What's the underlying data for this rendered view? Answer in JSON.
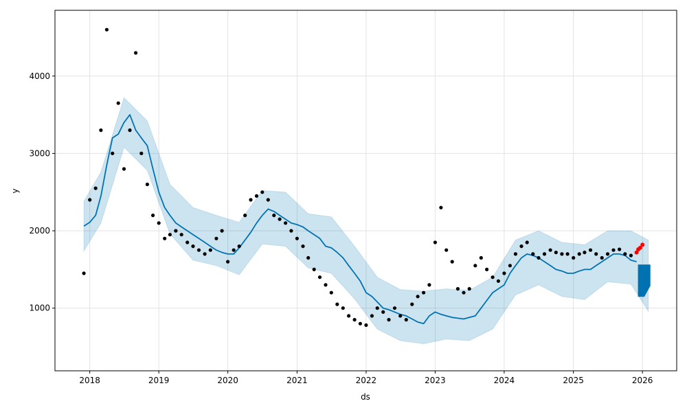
{
  "chart_data": {
    "type": "line",
    "title": "",
    "xlabel": "ds",
    "ylabel": "y",
    "x_axis": "date",
    "xlim": [
      "2017-07-01",
      "2026-07-01"
    ],
    "ylim": [
      190,
      4850
    ],
    "x_tick_labels": [
      "2018",
      "2019",
      "2020",
      "2021",
      "2022",
      "2023",
      "2024",
      "2025",
      "2026"
    ],
    "y_ticks": [
      1000,
      2000,
      3000,
      4000
    ],
    "grid": true,
    "legend": "none",
    "colors": {
      "observed": "#000000",
      "forecast": "#0072B2",
      "uncertainty": "#0072B2",
      "highlight": "#FF0000"
    },
    "series": [
      {
        "role": "forecast",
        "x": [
          "2017-12-01",
          "2018-01-01",
          "2018-02-01",
          "2018-03-01",
          "2018-04-01",
          "2018-05-01",
          "2018-06-01",
          "2018-07-01",
          "2018-08-01",
          "2018-09-01",
          "2018-10-01",
          "2018-11-01",
          "2018-12-01",
          "2019-01-01",
          "2019-02-01",
          "2019-03-01",
          "2019-04-01",
          "2019-05-01",
          "2019-06-01",
          "2019-07-01",
          "2019-08-01",
          "2019-09-01",
          "2019-10-01",
          "2019-11-01",
          "2019-12-01",
          "2020-01-01",
          "2020-02-01",
          "2020-03-01",
          "2020-04-01",
          "2020-05-01",
          "2020-06-01",
          "2020-07-01",
          "2020-08-01",
          "2020-09-01",
          "2020-10-01",
          "2020-11-01",
          "2020-12-01",
          "2021-01-01",
          "2021-02-01",
          "2021-03-01",
          "2021-04-01",
          "2021-05-01",
          "2021-06-01",
          "2021-07-01",
          "2021-08-01",
          "2021-09-01",
          "2021-10-01",
          "2021-11-01",
          "2021-12-01",
          "2022-01-01",
          "2022-02-01",
          "2022-03-01",
          "2022-04-01",
          "2022-05-01",
          "2022-06-01",
          "2022-07-01",
          "2022-08-01",
          "2022-09-01",
          "2022-10-01",
          "2022-11-01",
          "2022-12-01",
          "2023-01-01",
          "2023-02-01",
          "2023-03-01",
          "2023-04-01",
          "2023-05-01",
          "2023-06-01",
          "2023-07-01",
          "2023-08-01",
          "2023-09-01",
          "2023-10-01",
          "2023-11-01",
          "2023-12-01",
          "2024-01-01",
          "2024-02-01",
          "2024-03-01",
          "2024-04-01",
          "2024-05-01",
          "2024-06-01",
          "2024-07-01",
          "2024-08-01",
          "2024-09-01",
          "2024-10-01",
          "2024-11-01",
          "2024-12-01",
          "2025-01-01",
          "2025-02-01",
          "2025-03-01",
          "2025-04-01",
          "2025-05-01",
          "2025-06-01",
          "2025-07-01",
          "2025-08-01",
          "2025-09-01",
          "2025-10-01",
          "2025-11-01",
          "2025-12-01"
        ],
        "y": [
          2060,
          2110,
          2200,
          2450,
          2850,
          3200,
          3250,
          3400,
          3500,
          3300,
          3200,
          3100,
          2800,
          2500,
          2300,
          2200,
          2100,
          2050,
          2000,
          1950,
          1900,
          1850,
          1800,
          1750,
          1720,
          1700,
          1700,
          1780,
          1880,
          1980,
          2100,
          2200,
          2280,
          2250,
          2200,
          2150,
          2100,
          2080,
          2050,
          2000,
          1950,
          1900,
          1800,
          1780,
          1720,
          1650,
          1550,
          1450,
          1350,
          1200,
          1150,
          1080,
          1000,
          980,
          950,
          920,
          900,
          860,
          820,
          800,
          900,
          950,
          920,
          900,
          880,
          870,
          860,
          880,
          900,
          1000,
          1100,
          1200,
          1250,
          1300,
          1450,
          1550,
          1650,
          1700,
          1680,
          1650,
          1600,
          1550,
          1500,
          1480,
          1450,
          1450,
          1480,
          1500,
          1500,
          1550,
          1600,
          1650,
          1700,
          1700,
          1680,
          1620,
          1600
        ]
      },
      {
        "role": "uncertainty",
        "x": [
          "2017-12-01",
          "2018-03-01",
          "2018-07-01",
          "2018-11-01",
          "2019-03-01",
          "2019-07-01",
          "2019-11-01",
          "2020-03-01",
          "2020-07-01",
          "2020-11-01",
          "2021-03-01",
          "2021-07-01",
          "2021-11-01",
          "2022-03-01",
          "2022-07-01",
          "2022-11-01",
          "2023-03-01",
          "2023-07-01",
          "2023-11-01",
          "2024-03-01",
          "2024-07-01",
          "2024-11-01",
          "2025-03-01",
          "2025-07-01",
          "2025-11-01",
          "2026-02-01"
        ],
        "upper": [
          2380,
          2760,
          3720,
          3420,
          2600,
          2300,
          2200,
          2110,
          2520,
          2500,
          2220,
          2180,
          1800,
          1400,
          1240,
          1220,
          1250,
          1230,
          1400,
          1880,
          2000,
          1850,
          1820,
          2000,
          2000,
          1880
        ],
        "lower": [
          1740,
          2100,
          3080,
          2780,
          1960,
          1620,
          1550,
          1430,
          1830,
          1800,
          1520,
          1450,
          1120,
          730,
          580,
          540,
          600,
          580,
          730,
          1170,
          1300,
          1150,
          1110,
          1340,
          1310,
          960
        ]
      },
      {
        "role": "forecast-future",
        "x": [
          "2025-12-10",
          "2026-01-10",
          "2026-02-10"
        ],
        "y_min": [
          1150,
          1150,
          1290
        ],
        "y_max": [
          1560,
          1560,
          1560
        ]
      }
    ],
    "observed": {
      "x": [
        "2017-12-01",
        "2018-01-01",
        "2018-02-01",
        "2018-03-01",
        "2018-04-01",
        "2018-05-01",
        "2018-06-01",
        "2018-07-01",
        "2018-08-01",
        "2018-09-01",
        "2018-10-01",
        "2018-11-01",
        "2018-12-01",
        "2019-01-01",
        "2019-02-01",
        "2019-03-01",
        "2019-04-01",
        "2019-05-01",
        "2019-06-01",
        "2019-07-01",
        "2019-08-01",
        "2019-09-01",
        "2019-10-01",
        "2019-11-01",
        "2019-12-01",
        "2020-01-01",
        "2020-02-01",
        "2020-03-01",
        "2020-04-01",
        "2020-05-01",
        "2020-06-01",
        "2020-07-01",
        "2020-08-01",
        "2020-09-01",
        "2020-10-01",
        "2020-11-01",
        "2020-12-01",
        "2021-01-01",
        "2021-02-01",
        "2021-03-01",
        "2021-04-01",
        "2021-05-01",
        "2021-06-01",
        "2021-07-01",
        "2021-08-01",
        "2021-09-01",
        "2021-10-01",
        "2021-11-01",
        "2021-12-01",
        "2022-01-01",
        "2022-02-01",
        "2022-03-01",
        "2022-04-01",
        "2022-05-01",
        "2022-06-01",
        "2022-07-01",
        "2022-08-01",
        "2022-09-01",
        "2022-10-01",
        "2022-11-01",
        "2022-12-01",
        "2023-01-01",
        "2023-02-01",
        "2023-03-01",
        "2023-04-01",
        "2023-05-01",
        "2023-06-01",
        "2023-07-01",
        "2023-08-01",
        "2023-09-01",
        "2023-10-01",
        "2023-11-01",
        "2023-12-01",
        "2024-01-01",
        "2024-02-01",
        "2024-03-01",
        "2024-04-01",
        "2024-05-01",
        "2024-06-01",
        "2024-07-01",
        "2024-08-01",
        "2024-09-01",
        "2024-10-01",
        "2024-11-01",
        "2024-12-01",
        "2025-01-01",
        "2025-02-01",
        "2025-03-01",
        "2025-04-01",
        "2025-05-01",
        "2025-06-01",
        "2025-07-01",
        "2025-08-01",
        "2025-09-01",
        "2025-10-01",
        "2025-11-01"
      ],
      "y": [
        1450,
        2400,
        2550,
        3300,
        4600,
        3000,
        3650,
        2800,
        3300,
        4300,
        3000,
        2600,
        2200,
        2100,
        1900,
        1950,
        2000,
        1950,
        1850,
        1800,
        1750,
        1700,
        1750,
        1900,
        2000,
        1600,
        1750,
        1800,
        2200,
        2400,
        2450,
        2500,
        2400,
        2200,
        2150,
        2100,
        2000,
        1900,
        1800,
        1650,
        1500,
        1400,
        1300,
        1200,
        1050,
        1000,
        900,
        850,
        800,
        780,
        900,
        1000,
        950,
        850,
        1000,
        900,
        850,
        1050,
        1150,
        1200,
        1300,
        1850,
        2300,
        1750,
        1600,
        1250,
        1200,
        1250,
        1550,
        1650,
        1500,
        1400,
        1350,
        1450,
        1550,
        1700,
        1800,
        1850,
        1700,
        1650,
        1700,
        1750,
        1720,
        1700,
        1700,
        1650,
        1700,
        1720,
        1750,
        1700,
        1650,
        1700,
        1750,
        1760,
        1700,
        1680
      ]
    },
    "observed_highlight": {
      "x": [
        "2025-12-01",
        "2025-12-10",
        "2025-12-20",
        "2026-01-01"
      ],
      "y": [
        1720,
        1760,
        1780,
        1820
      ]
    }
  }
}
